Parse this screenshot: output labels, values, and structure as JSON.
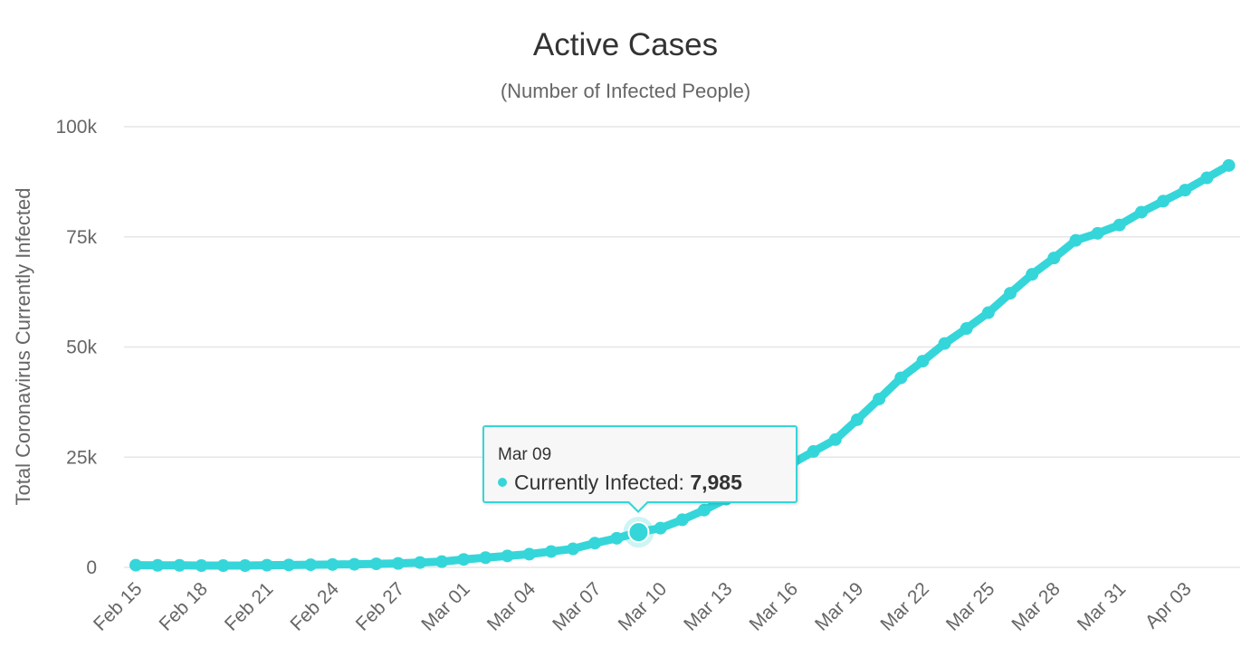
{
  "colors": {
    "series": "#35d6d9",
    "grid": "#e6e6e6",
    "text": "#333333",
    "muted": "#666666"
  },
  "chart_data": {
    "type": "line",
    "title": "Active Cases",
    "subtitle": "(Number of Infected People)",
    "ylabel": "Total Coronavirus Currently Infected",
    "ylim": [
      0,
      100000
    ],
    "yticks": [
      0,
      25000,
      50000,
      75000,
      100000
    ],
    "ytick_labels": [
      "0",
      "25k",
      "50k",
      "75k",
      "100k"
    ],
    "xtick_labels": [
      "Feb 15",
      "Feb 18",
      "Feb 21",
      "Feb 24",
      "Feb 27",
      "Mar 01",
      "Mar 04",
      "Mar 07",
      "Mar 10",
      "Mar 13",
      "Mar 16",
      "Mar 19",
      "Mar 22",
      "Mar 25",
      "Mar 28",
      "Mar 31",
      "Apr 03"
    ],
    "grid": true,
    "legend": "none",
    "series": [
      {
        "x": [
          "Feb 15",
          "Feb 16",
          "Feb 17",
          "Feb 18",
          "Feb 19",
          "Feb 20",
          "Feb 21",
          "Feb 22",
          "Feb 23",
          "Feb 24",
          "Feb 25",
          "Feb 26",
          "Feb 27",
          "Feb 28",
          "Feb 29",
          "Mar 01",
          "Mar 02",
          "Mar 03",
          "Mar 04",
          "Mar 05",
          "Mar 06",
          "Mar 07",
          "Mar 08",
          "Mar 09",
          "Mar 10",
          "Mar 11",
          "Mar 12",
          "Mar 13",
          "Mar 14",
          "Mar 15",
          "Mar 16",
          "Mar 17",
          "Mar 18",
          "Mar 19",
          "Mar 20",
          "Mar 21",
          "Mar 22",
          "Mar 23",
          "Mar 24",
          "Mar 25",
          "Mar 26",
          "Mar 27",
          "Mar 28",
          "Mar 29",
          "Mar 30",
          "Mar 31",
          "Apr 01",
          "Apr 02",
          "Apr 03",
          "Apr 04",
          "Apr 05"
        ],
        "values": [
          500,
          450,
          450,
          400,
          400,
          400,
          500,
          550,
          600,
          650,
          700,
          800,
          900,
          1100,
          1300,
          1800,
          2200,
          2600,
          3000,
          3600,
          4200,
          5500,
          6600,
          7985,
          8900,
          10800,
          13000,
          15500,
          18000,
          20800,
          23500,
          26300,
          29000,
          33500,
          38200,
          43000,
          46800,
          50800,
          54200,
          57800,
          62200,
          66500,
          70200,
          74200,
          75800,
          77700,
          80600,
          83100,
          85600,
          88400,
          91200
        ]
      }
    ]
  },
  "tooltip": {
    "date": "Mar 09",
    "label": "Currently Infected: ",
    "value": "7,985"
  }
}
